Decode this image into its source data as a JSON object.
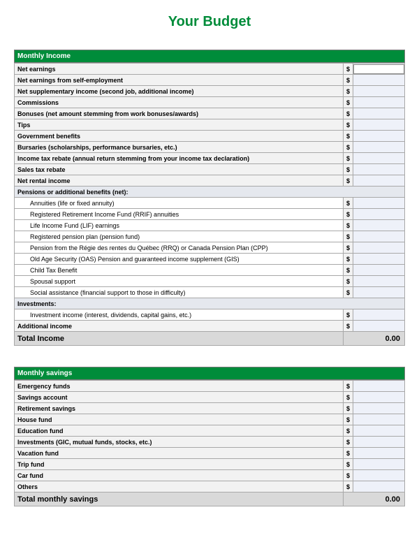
{
  "title": "Your Budget",
  "colors": {
    "accent": "#008c3a",
    "header_bg": "#f2f2f2",
    "subheader_bg": "#e5e8ee",
    "input_bg": "#eef1f9",
    "total_bg": "#d9d9d9",
    "border": "#a8a8a8"
  },
  "income": {
    "header": "Monthly Income",
    "rows": [
      {
        "label": "Net earnings",
        "type": "main",
        "boxed": true
      },
      {
        "label": "Net earnings from self-employment",
        "type": "main"
      },
      {
        "label": "Net supplementary income (second job, additional income)",
        "type": "main"
      },
      {
        "label": "Commissions",
        "type": "main"
      },
      {
        "label": "Bonuses (net amount stemming from work bonuses/awards)",
        "type": "main"
      },
      {
        "label": "Tips",
        "type": "main"
      },
      {
        "label": "Government benefits",
        "type": "main"
      },
      {
        "label": "Bursaries (scholarships, performance bursaries, etc.)",
        "type": "main"
      },
      {
        "label": "Income tax rebate (annual return stemming from your income tax declaration)",
        "type": "main"
      },
      {
        "label": "Sales tax rebate",
        "type": "main"
      },
      {
        "label": "Net rental income",
        "type": "main"
      },
      {
        "label": "Pensions or additional benefits (net):",
        "type": "subheader"
      },
      {
        "label": "Annuities (life or fixed annuity)",
        "type": "sub"
      },
      {
        "label": "Registered Retirement Income Fund (RRIF) annuities",
        "type": "sub"
      },
      {
        "label": "Life Income Fund (LIF) earnings",
        "type": "sub"
      },
      {
        "label": "Registered pension plan (pension fund)",
        "type": "sub"
      },
      {
        "label": "Pension from the Régie des rentes du Québec  (RRQ) or Canada Pension Plan (CPP)",
        "type": "sub"
      },
      {
        "label": "Old Age Security (OAS) Pension and guaranteed income supplement (GIS)",
        "type": "sub"
      },
      {
        "label": "Child Tax Benefit",
        "type": "sub"
      },
      {
        "label": "Spousal support",
        "type": "sub"
      },
      {
        "label": "Social assistance (financial support to those in difficulty)",
        "type": "sub"
      },
      {
        "label": "Investments:",
        "type": "subheader"
      },
      {
        "label": "Investment income (interest, dividends, capital gains, etc.)",
        "type": "sub"
      },
      {
        "label": "Additional income",
        "type": "main"
      }
    ],
    "total_label": "Total Income",
    "total_value": "0.00"
  },
  "savings": {
    "header": "Monthly savings",
    "rows": [
      {
        "label": "Emergency funds",
        "type": "main"
      },
      {
        "label": "Savings account",
        "type": "main"
      },
      {
        "label": "Retirement savings",
        "type": "main"
      },
      {
        "label": "House fund",
        "type": "main"
      },
      {
        "label": "Education fund",
        "type": "main"
      },
      {
        "label": "Investments (GIC, mutual funds, stocks, etc.)",
        "type": "main"
      },
      {
        "label": "Vacation fund",
        "type": "main"
      },
      {
        "label": "Trip fund",
        "type": "main"
      },
      {
        "label": "Car fund",
        "type": "main"
      },
      {
        "label": "Others",
        "type": "main"
      }
    ],
    "total_label": "Total monthly savings",
    "total_value": "0.00"
  },
  "currency": "$"
}
